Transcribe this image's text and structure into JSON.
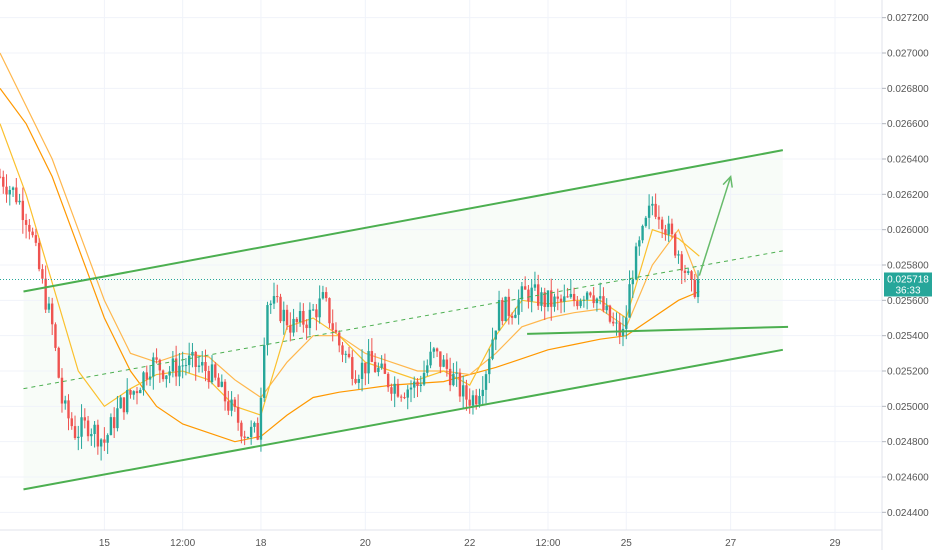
{
  "price_label": {
    "value": "0.025718",
    "countdown": "36:33"
  },
  "colors": {
    "up": "#26a69a",
    "down": "#ef5350",
    "channel": "#4caf50",
    "projection": "#66bb6a",
    "ma_fast": "#ff9800",
    "ma_mid": "#ffb74d",
    "ma_slow": "#fbc02d",
    "price_line": "#26a69a",
    "axis_text": "#555555"
  },
  "chart_data": {
    "type": "candlestick",
    "title": "",
    "xlabel": "",
    "ylabel": "",
    "y_range": [
      0.0243,
      0.0273
    ],
    "x_range": [
      13.0,
      29.9
    ],
    "y_ticks": [
      "0.024400",
      "0.024600",
      "0.024800",
      "0.025000",
      "0.025200",
      "0.025400",
      "0.025600",
      "0.025800",
      "0.026000",
      "0.026200",
      "0.026400",
      "0.026600",
      "0.026800",
      "0.027000",
      "0.027200"
    ],
    "x_ticks": [
      {
        "label": "15",
        "x": 15.0
      },
      {
        "label": "12:00",
        "x": 16.5
      },
      {
        "label": "18",
        "x": 18.0
      },
      {
        "label": "20",
        "x": 20.0
      },
      {
        "label": "22",
        "x": 22.0
      },
      {
        "label": "12:00",
        "x": 23.5
      },
      {
        "label": "25",
        "x": 25.0
      },
      {
        "label": "27",
        "x": 27.0
      },
      {
        "label": "29",
        "x": 29.0
      }
    ],
    "current_price": 0.025718,
    "close_series": [
      [
        13.0,
        0.0263
      ],
      [
        13.3,
        0.0262
      ],
      [
        13.55,
        0.02605
      ],
      [
        13.8,
        0.0257
      ],
      [
        14.0,
        0.02545
      ],
      [
        14.2,
        0.025
      ],
      [
        14.45,
        0.02485
      ],
      [
        14.7,
        0.0249
      ],
      [
        15.0,
        0.0248
      ],
      [
        15.3,
        0.025
      ],
      [
        15.6,
        0.0251
      ],
      [
        15.9,
        0.02525
      ],
      [
        16.2,
        0.0252
      ],
      [
        16.6,
        0.02525
      ],
      [
        17.0,
        0.0252
      ],
      [
        17.4,
        0.025
      ],
      [
        17.7,
        0.02485
      ],
      [
        17.95,
        0.02485
      ],
      [
        18.1,
        0.0256
      ],
      [
        18.35,
        0.02555
      ],
      [
        18.6,
        0.02545
      ],
      [
        18.9,
        0.0255
      ],
      [
        19.2,
        0.0256
      ],
      [
        19.5,
        0.02535
      ],
      [
        19.8,
        0.0252
      ],
      [
        20.1,
        0.02525
      ],
      [
        20.4,
        0.02515
      ],
      [
        20.7,
        0.0251
      ],
      [
        21.0,
        0.02512
      ],
      [
        21.3,
        0.0253
      ],
      [
        21.6,
        0.0252
      ],
      [
        21.9,
        0.02505
      ],
      [
        22.1,
        0.02505
      ],
      [
        22.3,
        0.0252
      ],
      [
        22.55,
        0.02555
      ],
      [
        22.8,
        0.02555
      ],
      [
        23.1,
        0.02565
      ],
      [
        23.4,
        0.0256
      ],
      [
        23.7,
        0.02558
      ],
      [
        24.0,
        0.0256
      ],
      [
        24.3,
        0.02568
      ],
      [
        24.55,
        0.02555
      ],
      [
        24.75,
        0.02545
      ],
      [
        24.95,
        0.0254
      ],
      [
        25.1,
        0.02575
      ],
      [
        25.3,
        0.02595
      ],
      [
        25.5,
        0.02615
      ],
      [
        25.65,
        0.0261
      ],
      [
        25.85,
        0.02595
      ],
      [
        26.05,
        0.02585
      ],
      [
        26.25,
        0.02565
      ],
      [
        26.4,
        0.02572
      ]
    ],
    "series": [
      {
        "name": "",
        "x": [
          13.0,
          13.5,
          14.0,
          14.5,
          15.0,
          15.5,
          16.0,
          16.5,
          17.0,
          17.5,
          18.0,
          18.5,
          19.0,
          19.5,
          20.0,
          20.5,
          21.0,
          21.5,
          22.0,
          22.5,
          23.0,
          23.5,
          24.0,
          24.5,
          25.0,
          25.5,
          26.0,
          26.4
        ],
        "y": [
          0.0268,
          0.0266,
          0.0263,
          0.0259,
          0.0255,
          0.0252,
          0.025,
          0.0249,
          0.02485,
          0.0248,
          0.02483,
          0.02495,
          0.02505,
          0.02508,
          0.0251,
          0.02512,
          0.02513,
          0.02514,
          0.02518,
          0.02522,
          0.02527,
          0.02532,
          0.02535,
          0.02538,
          0.0254,
          0.0255,
          0.0256,
          0.02565
        ]
      },
      {
        "name": "",
        "x": [
          13.0,
          13.5,
          14.0,
          14.5,
          15.0,
          15.5,
          16.0,
          16.5,
          17.0,
          17.5,
          18.0,
          18.5,
          19.0,
          19.5,
          20.0,
          20.5,
          21.0,
          21.5,
          22.0,
          22.5,
          23.0,
          23.5,
          24.0,
          24.5,
          25.0,
          25.5,
          26.0,
          26.4
        ],
        "y": [
          0.027,
          0.0267,
          0.0264,
          0.026,
          0.0256,
          0.0253,
          0.02525,
          0.0253,
          0.02528,
          0.02515,
          0.02505,
          0.02525,
          0.0254,
          0.0254,
          0.0253,
          0.02525,
          0.0252,
          0.0252,
          0.02518,
          0.0253,
          0.02545,
          0.0255,
          0.02553,
          0.02555,
          0.02545,
          0.0258,
          0.026,
          0.0257
        ]
      },
      {
        "name": "",
        "x": [
          13.0,
          13.5,
          14.0,
          14.5,
          15.0,
          15.5,
          16.0,
          16.5,
          17.0,
          17.5,
          18.0,
          18.5,
          19.0,
          19.5,
          20.0,
          20.5,
          21.0,
          21.5,
          22.0,
          22.5,
          23.0,
          23.5,
          24.0,
          24.5,
          25.0,
          25.5,
          26.0,
          26.4
        ],
        "y": [
          0.0266,
          0.0262,
          0.0257,
          0.0252,
          0.025,
          0.0251,
          0.02518,
          0.0252,
          0.02515,
          0.025,
          0.02495,
          0.02545,
          0.0255,
          0.0254,
          0.02525,
          0.0252,
          0.02515,
          0.0252,
          0.02512,
          0.0254,
          0.0256,
          0.02558,
          0.0256,
          0.0256,
          0.0255,
          0.026,
          0.02595,
          0.02585
        ]
      }
    ],
    "drawings": {
      "channel_upper": [
        [
          13.45,
          0.02565
        ],
        [
          28.0,
          0.02645
        ]
      ],
      "channel_lower": [
        [
          13.45,
          0.02453
        ],
        [
          28.0,
          0.02532
        ]
      ],
      "channel_mid_dashed": [
        [
          13.45,
          0.0251
        ],
        [
          28.0,
          0.02588
        ]
      ],
      "support_line": [
        [
          23.1,
          0.02541
        ],
        [
          28.1,
          0.02545
        ]
      ],
      "projection_arrow": [
        [
          26.4,
          0.02574
        ],
        [
          27.0,
          0.0263
        ]
      ]
    }
  }
}
